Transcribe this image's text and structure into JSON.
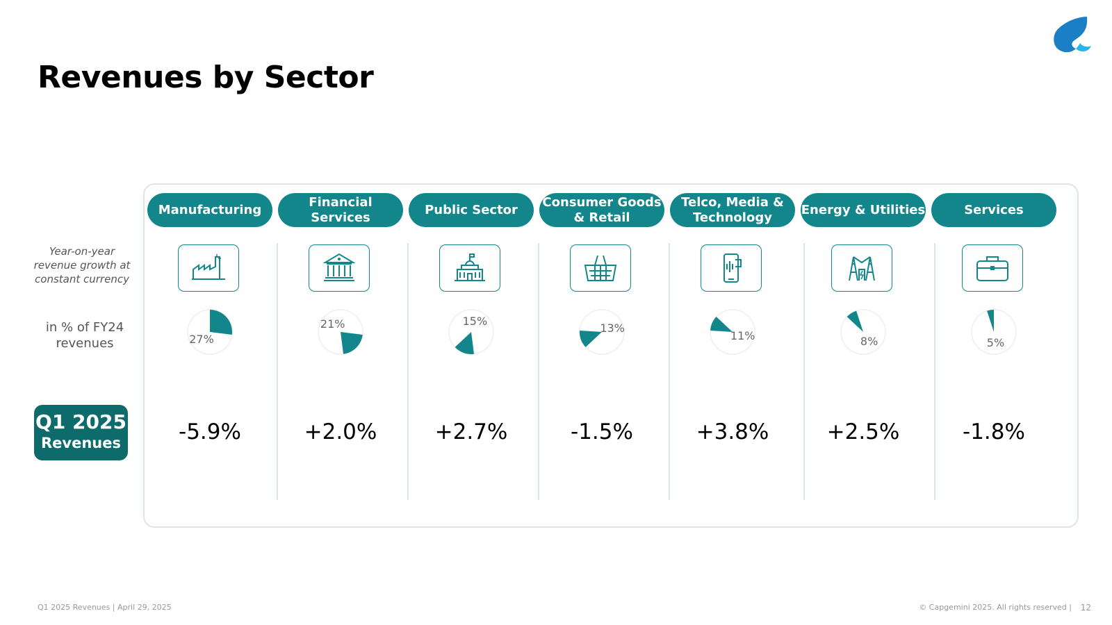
{
  "title": "Revenues by Sector",
  "side": {
    "yoy_label": "Year-on-year revenue growth at constant currency",
    "share_label": "in % of FY24 revenues",
    "badge_line1": "Q1 2025",
    "badge_line2": "Revenues"
  },
  "sectors": [
    {
      "name": "Manufacturing",
      "icon": "factory-icon",
      "share": 27,
      "share_label": "27%",
      "growth": "-5.9%"
    },
    {
      "name": "Financial Services",
      "icon": "bank-icon",
      "share": 21,
      "share_label": "21%",
      "growth": "+2.0%"
    },
    {
      "name": "Public Sector",
      "icon": "government-building-icon",
      "share": 15,
      "share_label": "15%",
      "growth": "+2.7%"
    },
    {
      "name": "Consumer Goods & Retail",
      "icon": "shopping-basket-icon",
      "share": 13,
      "share_label": "13%",
      "growth": "-1.5%"
    },
    {
      "name": "Telco, Media & Technology",
      "icon": "smartphone-icon",
      "share": 11,
      "share_label": "11%",
      "growth": "+3.8%"
    },
    {
      "name": "Energy & Utilities",
      "icon": "power-pylon-icon",
      "share": 8,
      "share_label": "8%",
      "growth": "+2.5%"
    },
    {
      "name": "Services",
      "icon": "briefcase-icon",
      "share": 5,
      "share_label": "5%",
      "growth": "-1.8%"
    }
  ],
  "footer": {
    "left": "Q1 2025 Revenues  |  April 29, 2025",
    "right": "© Capgemini 2025. All rights reserved  |",
    "page": "12"
  },
  "colors": {
    "accent": "#12868a",
    "badge": "#0e6b6b",
    "logo": "#1a7fc4"
  }
}
